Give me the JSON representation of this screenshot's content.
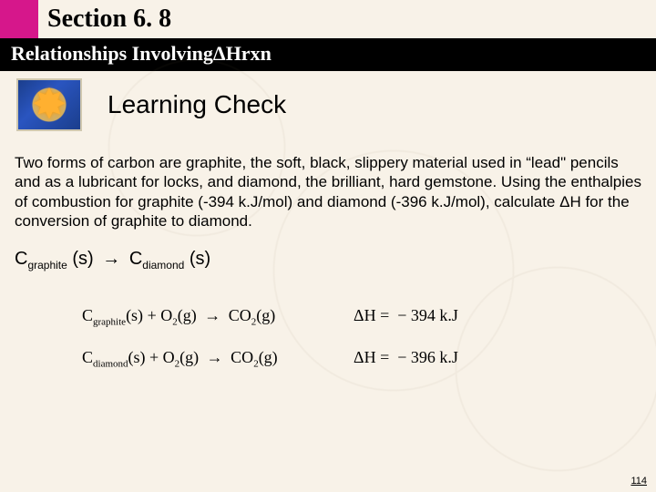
{
  "header": {
    "section_title": "Section 6. 8",
    "subtitle_prefix": "Relationships Involving ",
    "subtitle_delta": "ΔHrxn"
  },
  "learning_check_label": "Learning Check",
  "body_paragraph": "Two forms of carbon are graphite, the soft, black, slippery material used in “lead\" pencils and as a lubricant for locks, and diamond, the brilliant, hard gemstone. Using the enthalpies of combustion for graphite (-394 k.J/mol) and diamond (-396 k.J/mol), calculate ΔH for the conversion of graphite to diamond.",
  "target_equation": {
    "left_species": "C",
    "left_phase_sub": "graphite",
    "left_state": "(s)",
    "arrow": "→",
    "right_species": "C",
    "right_phase_sub": "diamond",
    "right_state": "(s)"
  },
  "combustion_equations": [
    {
      "reactant_formula": "C",
      "reactant_sub": "graphite",
      "reactant_state": "(s)",
      "plus_o2": "+ O",
      "o2_sub": "2",
      "o2_state": "(g)",
      "arrow": "→",
      "product": "CO",
      "product_sub": "2",
      "product_state": "(g)",
      "dh_label": "ΔH =",
      "dh_value": "− 394 k.J"
    },
    {
      "reactant_formula": "C",
      "reactant_sub": "diamond",
      "reactant_state": "(s)",
      "plus_o2": "+ O",
      "o2_sub": "2",
      "o2_state": "(g)",
      "arrow": "→",
      "product": "CO",
      "product_sub": "2",
      "product_state": "(g)",
      "dh_label": "ΔH =",
      "dh_value": "− 396 k.J"
    }
  ],
  "page_number": "114",
  "colors": {
    "magenta": "#d6178b",
    "background": "#f8f2e8",
    "black": "#000000"
  }
}
